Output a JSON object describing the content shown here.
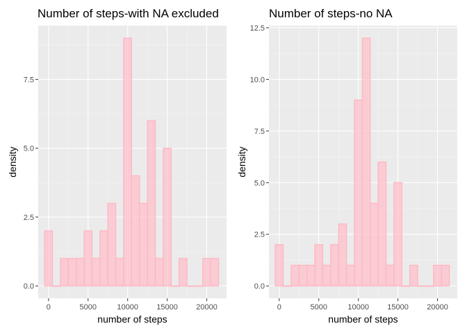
{
  "chart_data": [
    {
      "type": "bar",
      "title": "Number of steps-with NA excluded",
      "xlabel": "number of steps",
      "ylabel": "density",
      "bin_width": 1000,
      "bin_centers": [
        0,
        1000,
        2000,
        3000,
        4000,
        5000,
        6000,
        7000,
        8000,
        9000,
        10000,
        11000,
        12000,
        13000,
        14000,
        15000,
        16000,
        17000,
        18000,
        19000,
        20000,
        21000
      ],
      "values": [
        2,
        0,
        1,
        1,
        1,
        2,
        1,
        2,
        3,
        1,
        9,
        4,
        3,
        6,
        1,
        5,
        0,
        1,
        0,
        0,
        1,
        1
      ],
      "extra_bars": [
        {
          "x": 7700,
          "value": 2
        },
        {
          "x": 10700,
          "value": 4
        },
        {
          "x": 14200,
          "value": 2
        },
        {
          "x": 9000,
          "value": 3
        }
      ],
      "xlim": [
        -1300,
        22500
      ],
      "ylim": [
        -0.45,
        9.45
      ],
      "xticks": [
        0,
        5000,
        10000,
        15000,
        20000
      ],
      "yticks": [
        0.0,
        2.5,
        5.0,
        7.5
      ],
      "ytick_labels": [
        "0.0",
        "2.5",
        "5.0",
        "7.5"
      ],
      "fill_color": "#ffc0cb",
      "outline_color": "#ffb6c1"
    },
    {
      "type": "bar",
      "title": "Number of steps-no NA",
      "xlabel": "number of steps",
      "ylabel": "density",
      "bin_width": 1000,
      "bin_centers": [
        0,
        1000,
        2000,
        3000,
        4000,
        5000,
        6000,
        7000,
        8000,
        9000,
        10000,
        11000,
        12000,
        13000,
        14000,
        15000,
        16000,
        17000,
        18000,
        19000,
        20000,
        21000
      ],
      "values": [
        2,
        0,
        1,
        1,
        1,
        2,
        1,
        2,
        3,
        1,
        9,
        12,
        4,
        6,
        1,
        5,
        0,
        1,
        0,
        0,
        1,
        1
      ],
      "extra_bars": [
        {
          "x": 7700,
          "value": 2
        },
        {
          "x": 11500,
          "value": 4
        },
        {
          "x": 12000,
          "value": 3
        },
        {
          "x": 14200,
          "value": 2
        }
      ],
      "xlim": [
        -1300,
        22500
      ],
      "ylim": [
        -0.6,
        12.6
      ],
      "xticks": [
        0,
        5000,
        10000,
        15000,
        20000
      ],
      "yticks": [
        0.0,
        2.5,
        5.0,
        7.5,
        10.0,
        12.5
      ],
      "ytick_labels": [
        "0.0",
        "2.5",
        "5.0",
        "7.5",
        "10.0",
        "12.5"
      ],
      "fill_color": "#ffc0cb",
      "outline_color": "#ffb6c1"
    }
  ]
}
